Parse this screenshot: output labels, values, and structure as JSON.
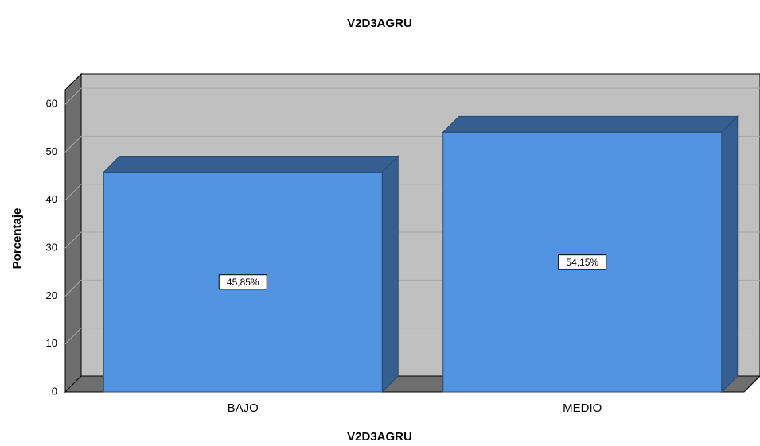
{
  "chart_data": {
    "type": "bar3d",
    "title": "V2D3AGRU",
    "x_label": "V2D3AGRU",
    "y_label": "Porcentaje",
    "categories": [
      "BAJO",
      "MEDIO"
    ],
    "values": [
      45.85,
      54.15
    ],
    "value_labels": [
      "45,85%",
      "54,15%"
    ],
    "color": "#5294e2",
    "ylim": [
      0,
      63
    ],
    "yticks": [
      0,
      10,
      20,
      30,
      40,
      50,
      60
    ],
    "grid": true
  }
}
